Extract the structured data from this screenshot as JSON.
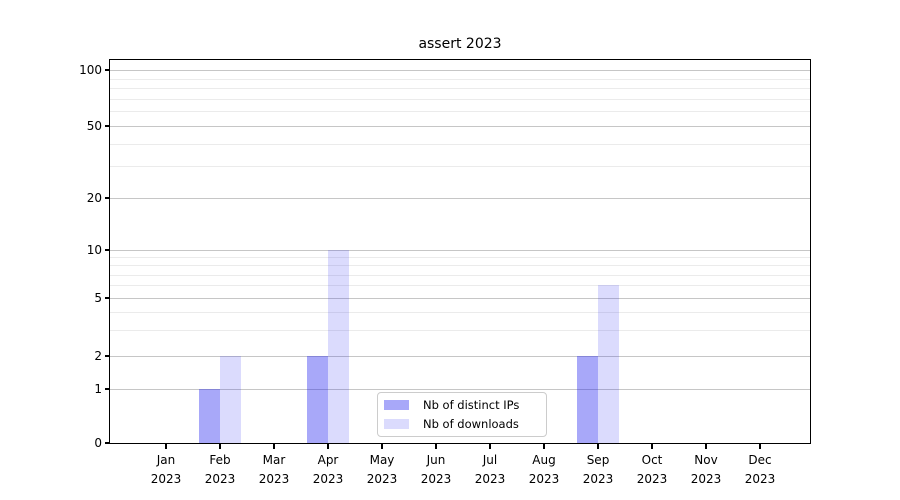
{
  "title": "assert 2023",
  "year": "2023",
  "chart_data": {
    "type": "bar",
    "title": "assert 2023",
    "categories": [
      "Jan 2023",
      "Feb 2023",
      "Mar 2023",
      "Apr 2023",
      "May 2023",
      "Jun 2023",
      "Jul 2023",
      "Aug 2023",
      "Sep 2023",
      "Oct 2023",
      "Nov 2023",
      "Dec 2023"
    ],
    "x_tick_months": [
      "Jan",
      "Feb",
      "Mar",
      "Apr",
      "May",
      "Jun",
      "Jul",
      "Aug",
      "Sep",
      "Oct",
      "Nov",
      "Dec"
    ],
    "x_tick_year": "2023",
    "series": [
      {
        "name": "Nb of distinct IPs",
        "fill": "rgba(30,30,240,0.39)",
        "approx_hex": "#a7a7fa",
        "values": [
          0,
          1,
          0,
          2,
          0,
          0,
          0,
          0,
          2,
          0,
          0,
          0
        ]
      },
      {
        "name": "Nb of downloads",
        "fill": "rgba(30,30,240,0.16)",
        "approx_hex": "#dcdcfb",
        "values": [
          0,
          2,
          0,
          10,
          0,
          0,
          0,
          0,
          6,
          0,
          0,
          0
        ]
      }
    ],
    "xlabel": "",
    "ylabel": "",
    "yscale": "symlog",
    "ylim": [
      0,
      115
    ],
    "y_ticks": [
      0,
      1,
      2,
      5,
      10,
      20,
      50,
      100
    ],
    "y_minor_gridlines": [
      3,
      4,
      6,
      7,
      8,
      9,
      30,
      40,
      60,
      70,
      80,
      90
    ],
    "grid": "horizontal",
    "legend_position": "lower center"
  },
  "colors": {
    "major_gridline": "#c6c6c6",
    "minor_gridline": "#ebebeb",
    "spine": "#000000",
    "text": "#000000",
    "background": "#ffffff",
    "legend_border": "#cccccc"
  }
}
